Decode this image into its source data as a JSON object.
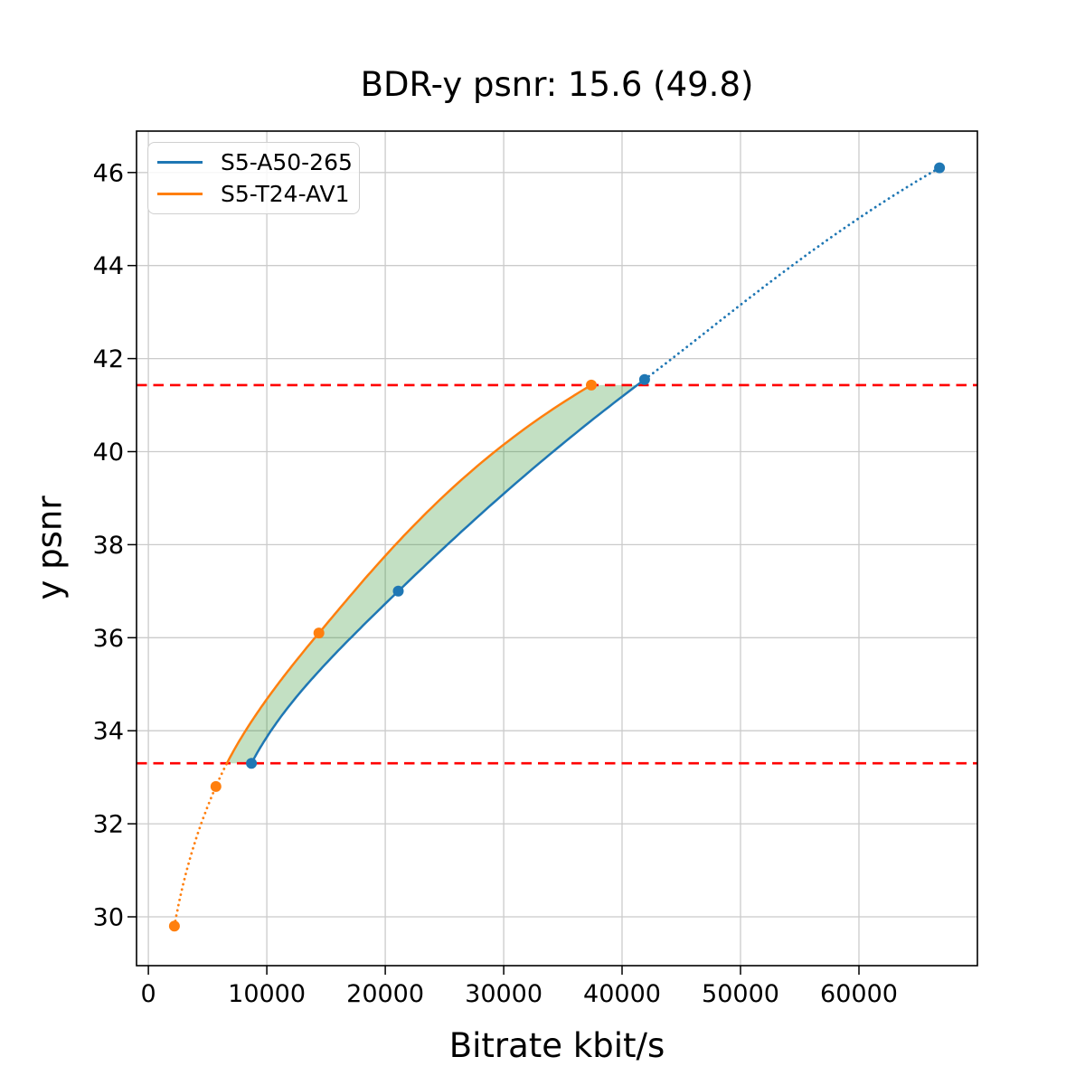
{
  "chart_data": {
    "type": "line",
    "title": "BDR-y psnr: 15.6 (49.8)",
    "xlabel": "Bitrate kbit/s",
    "ylabel": "y psnr",
    "xlim": [
      -1000,
      70000
    ],
    "ylim": [
      28.95,
      46.89
    ],
    "xticks": [
      0,
      10000,
      20000,
      30000,
      40000,
      50000,
      60000
    ],
    "yticks": [
      30,
      32,
      34,
      36,
      38,
      40,
      42,
      44,
      46
    ],
    "grid": true,
    "grid_color": "#cbcbcb",
    "axis_color": "#000000",
    "legend_position": "upper left",
    "series": [
      {
        "name": "S5-A50-265",
        "color": "#1f77b4",
        "x": [
          8700,
          21100,
          41900,
          66800
        ],
        "y": [
          33.3,
          37.0,
          41.55,
          46.1
        ]
      },
      {
        "name": "S5-T24-AV1",
        "color": "#ff7f0e",
        "x": [
          2200,
          5700,
          14400,
          37400
        ],
        "y": [
          29.8,
          32.8,
          36.1,
          41.43
        ]
      }
    ],
    "overlap_lines": {
      "color": "#ff0000",
      "style": "dashed",
      "y_values": [
        41.43,
        33.3
      ]
    },
    "fill_between": {
      "color": "#228B22",
      "opacity": 0.27,
      "between_psnr": [
        33.3,
        41.43
      ]
    }
  }
}
